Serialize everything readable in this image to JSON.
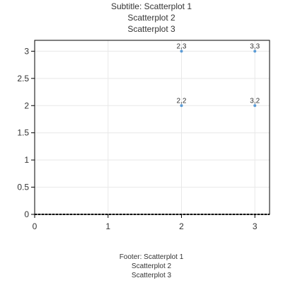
{
  "subtitle_lines": [
    "Subtitle: Scatterplot 1",
    "Scatterplot 2",
    "Scatterplot 3"
  ],
  "footer_lines": [
    "Footer: Scatterplot 1",
    "Scatterplot 2",
    "Scatterplot 3"
  ],
  "chart_data": {
    "type": "scatter",
    "title": "",
    "subtitle": "Subtitle: Scatterplot 1\nScatterplot 2\nScatterplot 3",
    "footer": "Footer: Scatterplot 1\nScatterplot 2\nScatterplot 3",
    "xlabel": "",
    "ylabel": "",
    "xlim": [
      0,
      3.2
    ],
    "ylim": [
      0,
      3.2
    ],
    "x_ticks": [
      "0",
      "1",
      "2",
      "3"
    ],
    "y_ticks": [
      "0",
      "0.5",
      "1",
      "1.5",
      "2",
      "2.5",
      "3"
    ],
    "grid": true,
    "legend": "none",
    "series": [
      {
        "color": "#5b9bd5",
        "points": [
          {
            "x": 2,
            "y": 3,
            "label": "2,3"
          },
          {
            "x": 3,
            "y": 3,
            "label": "3,3"
          },
          {
            "x": 2,
            "y": 2,
            "label": "2,2"
          },
          {
            "x": 3,
            "y": 2,
            "label": "3,2"
          }
        ]
      }
    ]
  }
}
